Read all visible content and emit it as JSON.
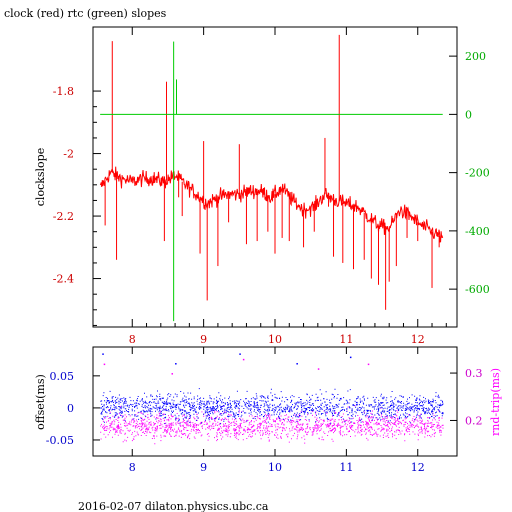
{
  "page": {
    "title": "clock (red) rtc (green) slopes",
    "footer": "2016-02-07  dilaton.physics.ubc.ca"
  },
  "colors": {
    "clock": "#ff0000",
    "rtc": "#00cc00",
    "offset": "#0000ff",
    "roundtrip": "#ff00ff",
    "axis": "#000000"
  },
  "chart_data": [
    {
      "type": "line",
      "title": "clock (red) rtc (green) slopes",
      "ylabel": "clockslope",
      "xlim": [
        7.45,
        12.55
      ],
      "ylim": [
        -2.555,
        -1.595
      ],
      "y2lim": [
        -730,
        300
      ],
      "x_ticks": [
        8,
        9,
        10,
        11,
        12
      ],
      "y_ticks": [
        -1.8,
        -2,
        -2.2,
        -2.4
      ],
      "y_tick_labels": [
        "-1.8",
        "-2",
        "-2.2",
        "-2.4"
      ],
      "y2_ticks": [
        200,
        0,
        -200,
        -400,
        -600
      ],
      "y2_tick_labels": [
        "200",
        "0",
        "-200",
        "-400",
        "-600"
      ],
      "series": [
        {
          "name": "clock",
          "axis": "left",
          "x": [
            7.55,
            7.7,
            7.85,
            8.0,
            8.15,
            8.3,
            8.45,
            8.6,
            8.75,
            8.9,
            9.05,
            9.2,
            9.35,
            9.5,
            9.65,
            9.8,
            9.95,
            10.1,
            10.25,
            10.4,
            10.55,
            10.7,
            10.85,
            11.0,
            11.15,
            11.3,
            11.45,
            11.6,
            11.75,
            11.9,
            12.05,
            12.2,
            12.35
          ],
          "values": [
            -2.11,
            -2.06,
            -2.08,
            -2.09,
            -2.08,
            -2.08,
            -2.09,
            -2.07,
            -2.1,
            -2.13,
            -2.16,
            -2.14,
            -2.13,
            -2.13,
            -2.12,
            -2.12,
            -2.14,
            -2.11,
            -2.15,
            -2.18,
            -2.17,
            -2.13,
            -2.15,
            -2.16,
            -2.17,
            -2.2,
            -2.23,
            -2.24,
            -2.18,
            -2.2,
            -2.23,
            -2.25,
            -2.27
          ],
          "spikes": [
            [
              7.72,
              -1.64
            ],
            [
              7.78,
              -2.34
            ],
            [
              7.62,
              -2.23
            ],
            [
              8.45,
              -2.28
            ],
            [
              8.48,
              -1.77
            ],
            [
              8.65,
              -2.14
            ],
            [
              8.7,
              -2.2
            ],
            [
              8.95,
              -2.32
            ],
            [
              9.0,
              -1.96
            ],
            [
              9.05,
              -2.47
            ],
            [
              9.2,
              -2.36
            ],
            [
              9.35,
              -2.22
            ],
            [
              9.5,
              -1.97
            ],
            [
              9.6,
              -2.29
            ],
            [
              9.75,
              -2.28
            ],
            [
              9.9,
              -2.25
            ],
            [
              10.0,
              -2.32
            ],
            [
              10.1,
              -2.27
            ],
            [
              10.2,
              -2.28
            ],
            [
              10.4,
              -2.3
            ],
            [
              10.55,
              -2.25
            ],
            [
              10.7,
              -1.95
            ],
            [
              10.75,
              -2.17
            ],
            [
              10.82,
              -2.33
            ],
            [
              10.9,
              -1.62
            ],
            [
              10.95,
              -2.35
            ],
            [
              11.1,
              -2.37
            ],
            [
              11.25,
              -2.34
            ],
            [
              11.35,
              -2.4
            ],
            [
              11.45,
              -2.42
            ],
            [
              11.55,
              -2.5
            ],
            [
              11.6,
              -2.41
            ],
            [
              11.7,
              -2.36
            ],
            [
              11.85,
              -2.27
            ],
            [
              12.0,
              -2.28
            ],
            [
              12.2,
              -2.43
            ],
            [
              12.3,
              -2.3
            ]
          ]
        },
        {
          "name": "rtc",
          "axis": "right",
          "x": [
            7.55,
            12.35
          ],
          "values": [
            0,
            0
          ],
          "spikes": [
            [
              8.58,
              250
            ],
            [
              8.58,
              -710
            ],
            [
              8.62,
              120
            ]
          ]
        }
      ]
    },
    {
      "type": "scatter",
      "ylabel": "offset(ms)",
      "y2label": "rnd-trip(ms)",
      "xlim": [
        7.45,
        12.55
      ],
      "ylim": [
        -0.075,
        0.095
      ],
      "y2lim": [
        0.125,
        0.355
      ],
      "x_ticks": [
        8,
        9,
        10,
        11,
        12
      ],
      "y_ticks": [
        0.05,
        0,
        -0.05
      ],
      "y_tick_labels": [
        "0.05",
        "0",
        "-0.05"
      ],
      "y2_ticks": [
        0.3,
        0.2
      ],
      "y2_tick_labels": [
        "0.3",
        "0.2"
      ],
      "series": [
        {
          "name": "offset",
          "axis": "left",
          "x_range": [
            7.55,
            12.35
          ],
          "center": 0.002,
          "spread": 0.018,
          "outliers": [
            [
              7.58,
              0.085
            ],
            [
              8.6,
              0.07
            ],
            [
              9.5,
              0.085
            ],
            [
              10.3,
              0.07
            ],
            [
              11.05,
              0.08
            ]
          ]
        },
        {
          "name": "rnd-trip",
          "axis": "right",
          "x_range": [
            7.55,
            12.35
          ],
          "center": 0.19,
          "spread": 0.025,
          "outliers": [
            [
              7.6,
              0.32
            ],
            [
              8.55,
              0.3
            ],
            [
              9.55,
              0.33
            ],
            [
              10.6,
              0.31
            ],
            [
              11.3,
              0.32
            ]
          ]
        }
      ]
    }
  ]
}
